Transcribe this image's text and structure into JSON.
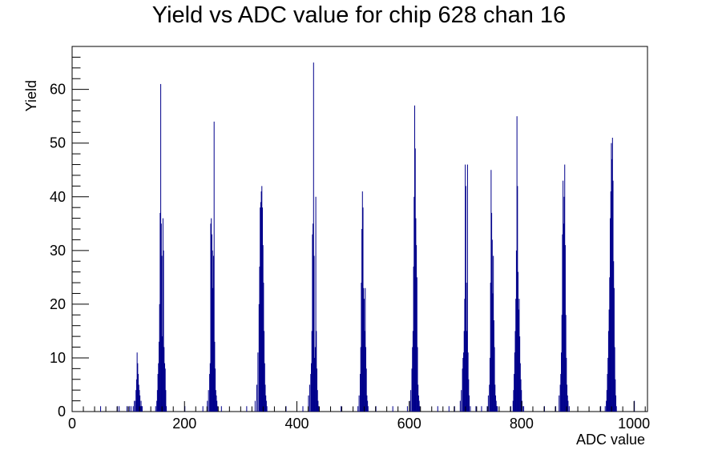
{
  "chart_data": {
    "type": "bar",
    "title": "Yield vs ADC value for chip 628 chan 16",
    "xlabel": "ADC value",
    "ylabel": "Yield",
    "xlim": [
      0,
      1024
    ],
    "ylim": [
      0,
      68
    ],
    "bin_width": 1,
    "x_ticks": [
      0,
      200,
      400,
      600,
      800,
      1000
    ],
    "y_ticks": [
      0,
      10,
      20,
      30,
      40,
      50,
      60
    ],
    "grid": false,
    "legend": "none",
    "colors": {
      "bars": "#00008b",
      "axes": "#000000",
      "background": "#ffffff"
    },
    "series": [
      {
        "x": [
          50,
          80,
          83,
          97,
          101,
          104,
          108,
          110,
          112,
          113,
          114,
          115,
          116,
          117,
          118,
          119,
          120,
          121,
          122,
          123,
          124,
          148,
          150,
          151,
          152,
          153,
          154,
          155,
          156,
          157,
          158,
          159,
          160,
          161,
          162,
          163,
          164,
          165,
          166,
          167,
          200,
          232,
          240,
          242,
          244,
          245,
          246,
          247,
          248,
          249,
          250,
          251,
          252,
          253,
          254,
          255,
          256,
          257,
          258,
          265,
          310,
          325,
          328,
          330,
          332,
          333,
          334,
          335,
          336,
          337,
          338,
          339,
          340,
          341,
          342,
          343,
          344,
          345,
          346,
          380,
          410,
          420,
          422,
          424,
          425,
          426,
          427,
          428,
          429,
          430,
          431,
          432,
          433,
          434,
          435,
          436,
          437,
          438,
          478,
          508,
          510,
          512,
          513,
          514,
          515,
          516,
          517,
          518,
          519,
          520,
          521,
          522,
          523,
          524,
          525,
          526,
          540,
          570,
          596,
          600,
          602,
          604,
          605,
          606,
          607,
          608,
          609,
          610,
          611,
          612,
          613,
          614,
          615,
          616,
          617,
          618,
          650,
          670,
          680,
          690,
          692,
          694,
          695,
          696,
          697,
          698,
          699,
          700,
          701,
          702,
          703,
          704,
          705,
          706,
          708,
          718,
          728,
          738,
          740,
          742,
          743,
          744,
          745,
          746,
          747,
          748,
          749,
          750,
          751,
          752,
          753,
          754,
          755,
          756,
          780,
          784,
          785,
          786,
          787,
          788,
          789,
          790,
          791,
          792,
          793,
          794,
          795,
          796,
          797,
          798,
          799,
          800,
          801,
          803,
          840,
          860,
          866,
          868,
          869,
          870,
          871,
          872,
          873,
          874,
          875,
          876,
          877,
          878,
          879,
          880,
          881,
          882,
          884,
          940,
          948,
          950,
          951,
          952,
          953,
          954,
          955,
          956,
          957,
          958,
          959,
          960,
          961,
          962,
          963,
          964,
          965,
          966,
          967,
          968,
          1000
        ],
        "values": [
          1,
          1,
          1,
          1,
          1,
          1,
          1,
          2,
          2,
          4,
          6,
          11,
          9,
          7,
          5,
          4,
          3,
          1,
          2,
          1,
          1,
          1,
          2,
          4,
          7,
          9,
          13,
          20,
          37,
          61,
          35,
          29,
          14,
          36,
          30,
          12,
          9,
          8,
          4,
          1,
          1,
          1,
          2,
          4,
          7,
          9,
          35,
          36,
          33,
          30,
          23,
          29,
          54,
          13,
          8,
          4,
          3,
          2,
          1,
          1,
          1,
          2,
          5,
          11,
          20,
          27,
          38,
          39,
          41,
          42,
          38,
          31,
          24,
          15,
          9,
          5,
          3,
          2,
          1,
          1,
          1,
          3,
          5,
          7,
          9,
          15,
          33,
          35,
          65,
          29,
          10,
          12,
          40,
          15,
          8,
          4,
          2,
          1,
          1,
          1,
          3,
          7,
          12,
          24,
          34,
          41,
          38,
          23,
          21,
          15,
          23,
          12,
          8,
          3,
          2,
          1,
          1,
          1,
          1,
          2,
          4,
          8,
          12,
          15,
          27,
          40,
          57,
          49,
          36,
          31,
          25,
          12,
          5,
          3,
          2,
          1,
          1,
          1,
          1,
          2,
          4,
          8,
          10,
          11,
          15,
          21,
          46,
          42,
          24,
          15,
          46,
          11,
          6,
          3,
          1,
          1,
          1,
          1,
          3,
          5,
          10,
          24,
          45,
          37,
          32,
          22,
          29,
          17,
          12,
          5,
          3,
          2,
          1,
          1,
          1,
          2,
          4,
          7,
          11,
          15,
          21,
          30,
          55,
          42,
          26,
          19,
          21,
          14,
          9,
          6,
          4,
          2,
          1,
          1,
          1,
          1,
          3,
          5,
          7,
          11,
          18,
          33,
          43,
          35,
          40,
          46,
          31,
          18,
          10,
          5,
          3,
          2,
          1,
          1,
          1,
          2,
          4,
          7,
          10,
          15,
          19,
          25,
          36,
          41,
          50,
          47,
          51,
          43,
          28,
          23,
          12,
          6,
          3,
          1,
          2
        ]
      }
    ]
  }
}
